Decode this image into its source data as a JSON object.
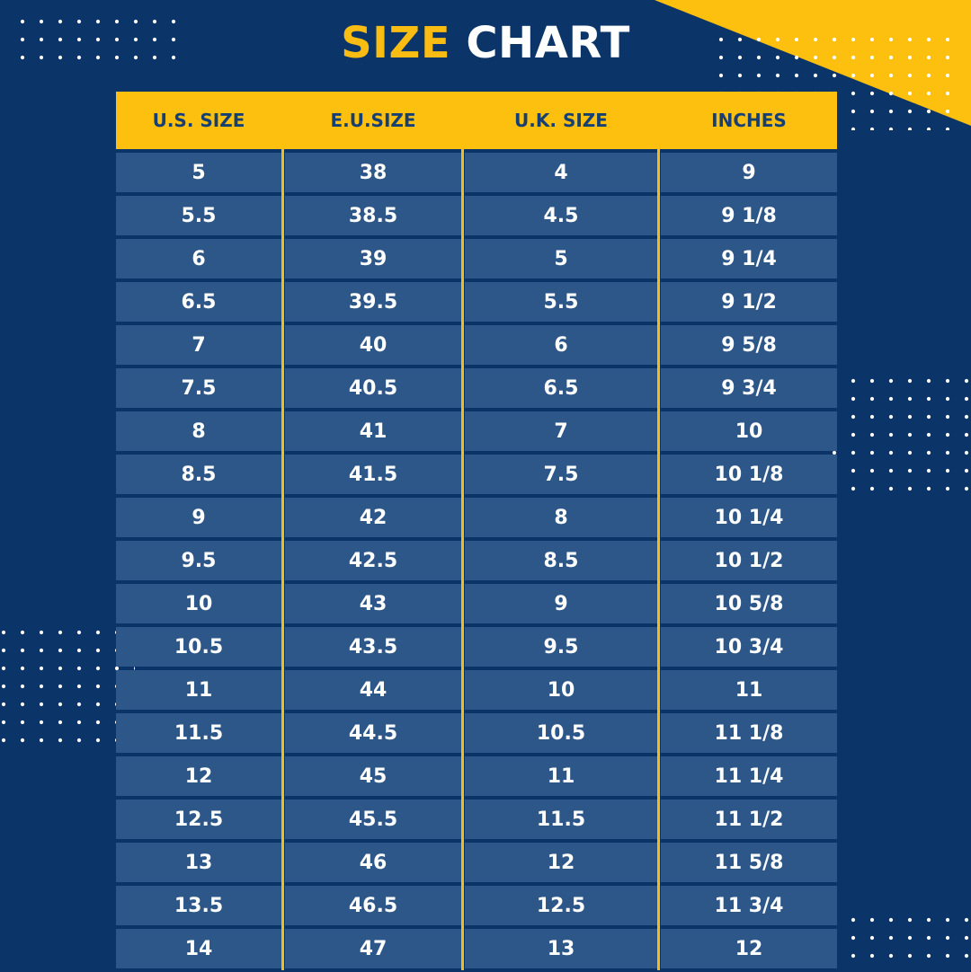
{
  "title": {
    "word1": "SIZE",
    "word2": "CHART"
  },
  "colors": {
    "background": "#0b3468",
    "accent": "#fec00f",
    "cell": "#2d5788",
    "header_text": "#163f73"
  },
  "table": {
    "headers": [
      "U.S. SIZE",
      "E.U.SIZE",
      "U.K. SIZE",
      "INCHES"
    ],
    "rows": [
      [
        "5",
        "38",
        "4",
        "9"
      ],
      [
        "5.5",
        "38.5",
        "4.5",
        "9 1/8"
      ],
      [
        "6",
        "39",
        "5",
        "9 1/4"
      ],
      [
        "6.5",
        "39.5",
        "5.5",
        "9 1/2"
      ],
      [
        "7",
        "40",
        "6",
        "9 5/8"
      ],
      [
        "7.5",
        "40.5",
        "6.5",
        "9 3/4"
      ],
      [
        "8",
        "41",
        "7",
        "10"
      ],
      [
        "8.5",
        "41.5",
        "7.5",
        "10 1/8"
      ],
      [
        "9",
        "42",
        "8",
        "10 1/4"
      ],
      [
        "9.5",
        "42.5",
        "8.5",
        "10 1/2"
      ],
      [
        "10",
        "43",
        "9",
        "10 5/8"
      ],
      [
        "10.5",
        "43.5",
        "9.5",
        "10 3/4"
      ],
      [
        "11",
        "44",
        "10",
        "11"
      ],
      [
        "11.5",
        "44.5",
        "10.5",
        "11 1/8"
      ],
      [
        "12",
        "45",
        "11",
        "11 1/4"
      ],
      [
        "12.5",
        "45.5",
        "11.5",
        "11 1/2"
      ],
      [
        "13",
        "46",
        "12",
        "11 5/8"
      ],
      [
        "13.5",
        "46.5",
        "12.5",
        "11 3/4"
      ],
      [
        "14",
        "47",
        "13",
        "12"
      ]
    ]
  }
}
